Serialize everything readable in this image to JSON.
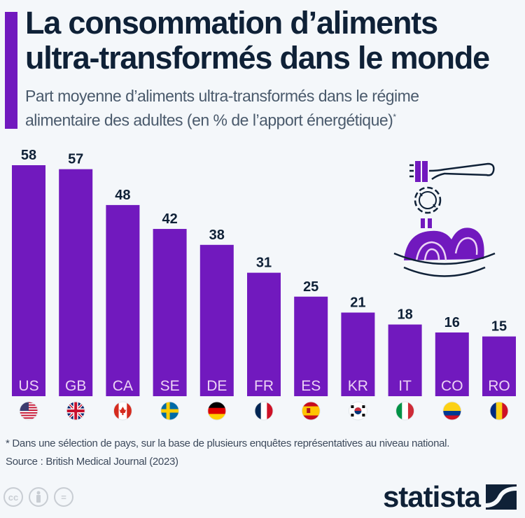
{
  "header": {
    "title_line1": "La consommation d’aliments",
    "title_line2": "ultra-transformés dans le monde",
    "subtitle_line1": "Part moyenne d’aliments ultra-transformés dans le régime",
    "subtitle_line2": "alimentaire des adultes (en % de l’apport énergétique)",
    "subtitle_mark": "*"
  },
  "chart_data": {
    "type": "bar",
    "title": "La consommation d’aliments ultra-transformés dans le monde",
    "subtitle": "Part moyenne d’aliments ultra-transformés dans le régime alimentaire des adultes (en % de l’apport énergétique)*",
    "xlabel": "",
    "ylabel": "% de l’apport énergétique",
    "ylim": [
      0,
      60
    ],
    "grid": false,
    "categories": [
      "US",
      "GB",
      "CA",
      "SE",
      "DE",
      "FR",
      "ES",
      "KR",
      "IT",
      "CO",
      "RO"
    ],
    "values": [
      58,
      57,
      48,
      42,
      38,
      31,
      25,
      21,
      18,
      16,
      15
    ],
    "flags": [
      "us-flag",
      "gb-flag",
      "ca-flag",
      "se-flag",
      "de-flag",
      "fr-flag",
      "es-flag",
      "kr-flag",
      "it-flag",
      "co-flag",
      "ro-flag"
    ],
    "bar_color": "#7119be",
    "value_label_color": "#0f2137",
    "category_label_color": "#ecd3f5"
  },
  "footer": {
    "footnote": "* Dans une sélection de pays, sur la base de plusieurs enquêtes représentatives au niveau national.",
    "source": "Source : British Medical Journal (2023)",
    "license_icons": [
      "cc",
      "by",
      "nd"
    ],
    "cc_label": "cc",
    "nd_label": "=",
    "brand": "statista"
  },
  "illustration": "pasta-fork-gear-icon"
}
